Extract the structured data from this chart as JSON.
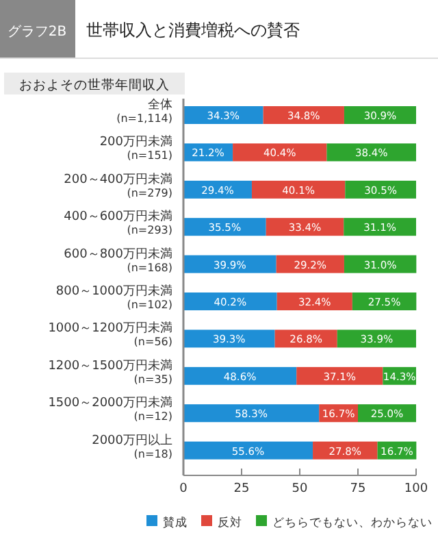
{
  "chart_data": {
    "type": "bar",
    "orientation": "horizontal",
    "stacked": true,
    "title": "世帯収入と消費増税への賛否",
    "annotations": [
      "グラフ2B"
    ],
    "ylabel": "おおよその世帯年間収入",
    "categories": [
      "全体\n(n=1,114)",
      "200万円未満\n(n=151)",
      "200～400万円未満\n(n=279)",
      "400～600万円未満\n(n=293)",
      "600～800万円未満\n(n=168)",
      "800～1000万円未満\n(n=102)",
      "1000～1200万円未満\n(n=56)",
      "1200～1500万円未満\n(n=35)",
      "1500～2000万円未満\n(n=12)",
      "2000万円以上\n(n=18)"
    ],
    "series": [
      {
        "name": "賛成",
        "color": "#1f8fd6",
        "values": [
          34.3,
          21.2,
          29.4,
          35.5,
          39.9,
          40.2,
          39.3,
          48.6,
          58.3,
          55.6
        ],
        "value_labels": [
          "34.3%",
          "21.2%",
          "29.4%",
          "35.5%",
          "39.9%",
          "40.2%",
          "39.3%",
          "48.6%",
          "58.3%",
          "55.6%"
        ]
      },
      {
        "name": "反対",
        "color": "#e0483c",
        "values": [
          34.8,
          40.4,
          40.1,
          33.4,
          29.2,
          32.4,
          26.8,
          37.1,
          16.7,
          27.8
        ],
        "value_labels": [
          "34.8%",
          "40.4%",
          "40.1%",
          "33.4%",
          "29.2%",
          "32.4%",
          "26.8%",
          "37.1%",
          "16.7%",
          "27.8%"
        ]
      },
      {
        "name": "どちらでもない、わからない",
        "color": "#2ea52f",
        "values": [
          30.9,
          38.4,
          30.5,
          31.1,
          31.0,
          27.5,
          33.9,
          14.3,
          25.0,
          16.7
        ],
        "value_labels": [
          "30.9%",
          "38.4%",
          "30.5%",
          "31.1%",
          "31.0%",
          "27.5%",
          "33.9%",
          "14.3%",
          "25.0%",
          "16.7%"
        ]
      }
    ],
    "xlim": [
      0,
      100
    ],
    "xticks": [
      0,
      25,
      50,
      75,
      100
    ],
    "grid": false,
    "legend": "bottom"
  }
}
